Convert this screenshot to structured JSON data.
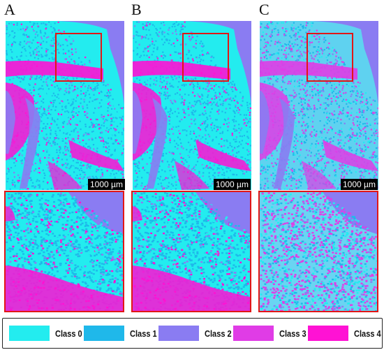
{
  "panels": [
    {
      "letter": "A",
      "scalebar": "1000 µm"
    },
    {
      "letter": "B",
      "scalebar": "1000 µm"
    },
    {
      "letter": "C",
      "scalebar": "1000 µm"
    }
  ],
  "legend": [
    {
      "label": "Class 0",
      "color": "#23ecef"
    },
    {
      "label": "Class 1",
      "color": "#1fb8ea"
    },
    {
      "label": "Class 2",
      "color": "#8a7cf2"
    },
    {
      "label": "Class 3",
      "color": "#e03ce6"
    },
    {
      "label": "Class 4",
      "color": "#ff12d4"
    }
  ],
  "colors": {
    "roi_border": "#e21616",
    "background_class": "#8a7cf2"
  }
}
